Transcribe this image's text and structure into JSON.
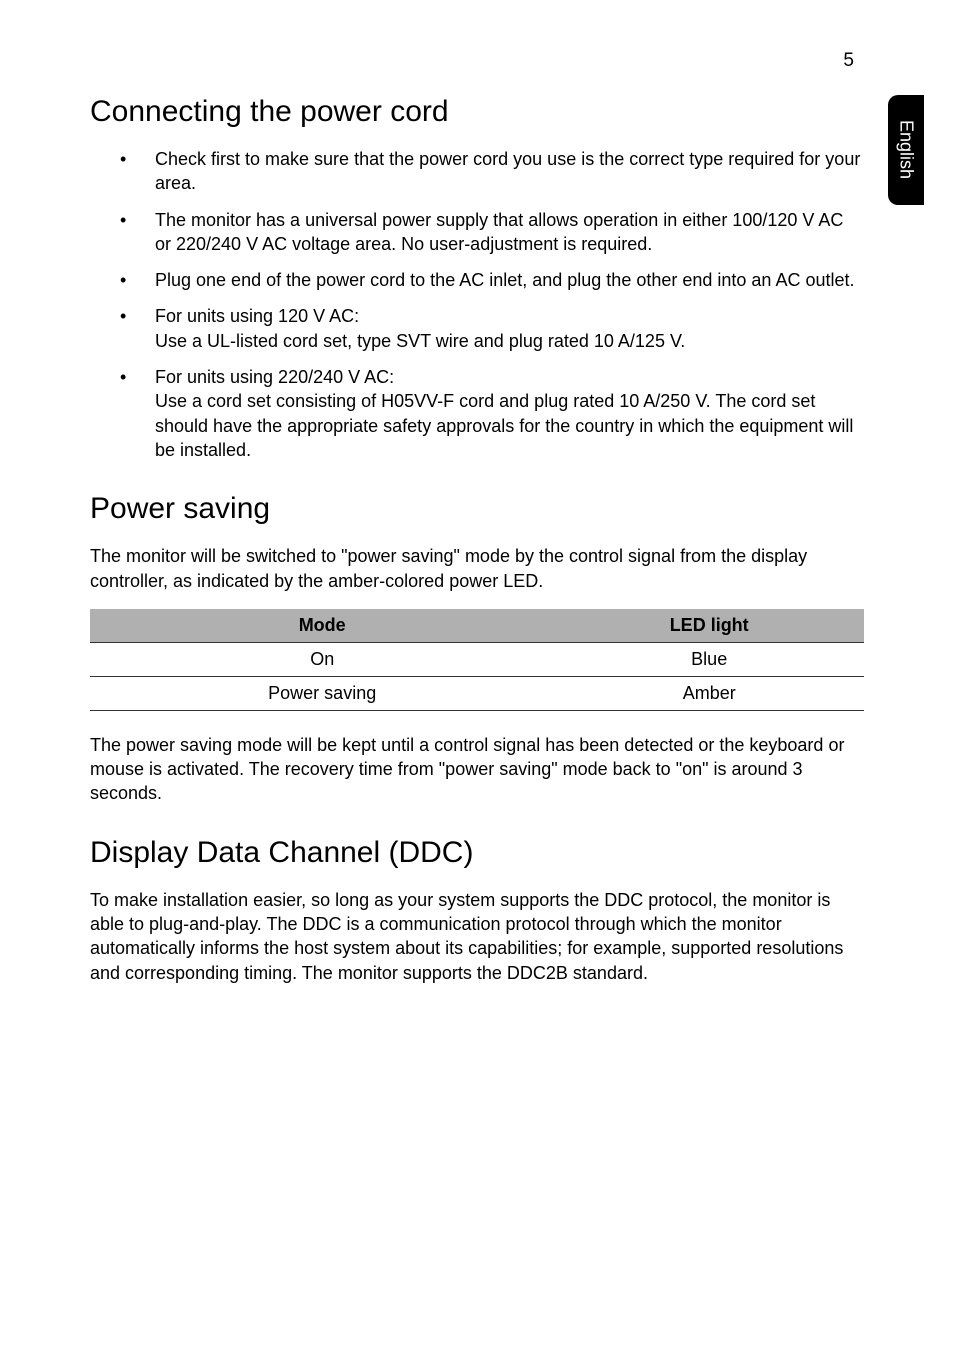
{
  "page_number": "5",
  "side_tab": "English",
  "sections": {
    "s1": {
      "heading": "Connecting the power cord",
      "bullets": [
        "Check first to make sure that the power cord you use is the correct type required for your area.",
        "The monitor has a universal power supply that allows operation in either 100/120 V AC or 220/240 V AC voltage area. No user-adjustment is required.",
        "Plug one end of the power cord to the AC inlet, and plug the other end into an AC outlet.",
        "For units using 120 V AC:\nUse a UL-listed cord set, type SVT wire and plug rated 10 A/125 V.",
        "For units using 220/240 V AC:\nUse a cord set consisting of H05VV-F cord and plug rated 10 A/250 V. The cord set should have the appropriate safety approvals for the country in which the equipment will be installed."
      ]
    },
    "s2": {
      "heading": "Power saving",
      "intro": "The monitor will be switched to \"power saving\" mode by the control signal from the display controller, as indicated by the amber-colored power LED.",
      "table": {
        "header": [
          "Mode",
          "LED light"
        ],
        "rows": [
          [
            "On",
            "Blue"
          ],
          [
            "Power saving",
            "Amber"
          ]
        ],
        "header_bg": "#b0b0b0",
        "border_color": "#333333"
      },
      "outro": "The power saving mode will be kept until a control signal has been detected or the keyboard or mouse is activated. The recovery time from \"power saving\" mode back to \"on\" is around 3 seconds."
    },
    "s3": {
      "heading": "Display Data Channel (DDC)",
      "body": "To make installation easier, so long as your system supports the DDC protocol, the monitor is able to plug-and-play. The DDC is a communication protocol through which the monitor automatically informs the host system about its capabilities; for example, supported resolutions and corresponding timing. The monitor supports the DDC2B standard."
    }
  }
}
